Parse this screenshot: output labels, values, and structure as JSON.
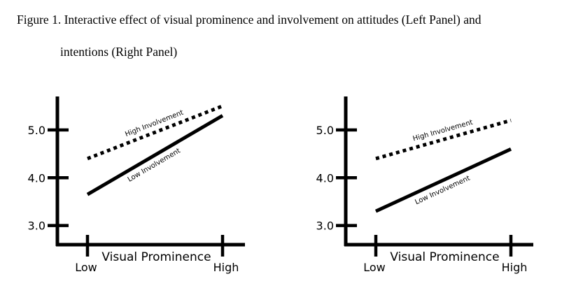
{
  "figure": {
    "caption_line1": "Figure 1. Interactive effect of visual prominence and involvement on attitudes (Left Panel) and",
    "caption_line2": "intentions (Right Panel)"
  },
  "chart_data": [
    {
      "type": "line",
      "panel": "left",
      "xlabel": "Visual Prominence",
      "ylabel": "",
      "categories": [
        "Low",
        "High"
      ],
      "yticks": [
        "3.0",
        "4.0",
        "5.0"
      ],
      "ylim": [
        2.6,
        5.7
      ],
      "grid": false,
      "series": [
        {
          "name": "High Involvement",
          "style": "dotted",
          "values": [
            4.4,
            5.5
          ]
        },
        {
          "name": "Low Involvement",
          "style": "solid",
          "values": [
            3.65,
            5.3
          ]
        }
      ]
    },
    {
      "type": "line",
      "panel": "right",
      "xlabel": "Visual Prominence",
      "ylabel": "",
      "categories": [
        "Low",
        "High"
      ],
      "yticks": [
        "3.0",
        "4.0",
        "5.0"
      ],
      "ylim": [
        2.6,
        5.7
      ],
      "grid": false,
      "series": [
        {
          "name": "High Involvement",
          "style": "dotted",
          "values": [
            4.4,
            5.2
          ]
        },
        {
          "name": "Low Involvement",
          "style": "solid",
          "values": [
            3.3,
            4.6
          ]
        }
      ]
    }
  ]
}
